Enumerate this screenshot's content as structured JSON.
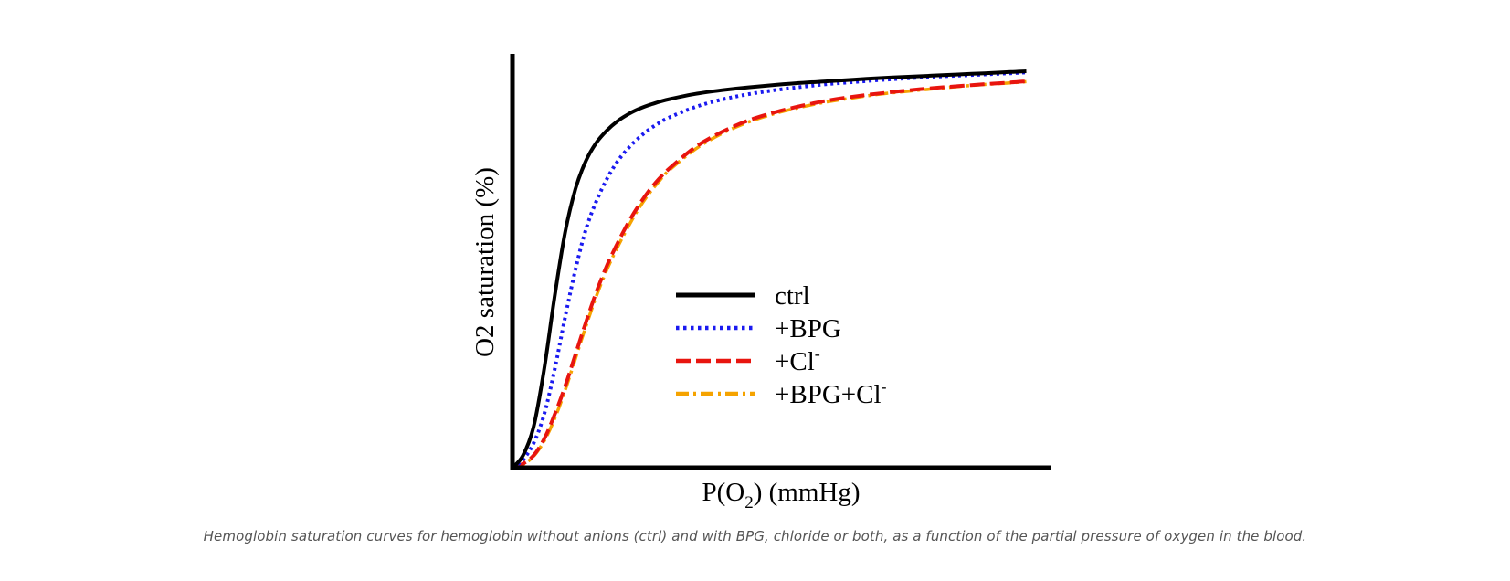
{
  "caption": "Hemoglobin saturation curves for hemoglobin without anions (ctrl) and with BPG, chloride or both, as a function of the partial pressure of oxygen in the blood.",
  "chart_data": {
    "type": "line",
    "title": "",
    "xlabel": {
      "base": "P(O",
      "sub": "2",
      "tail": ") (mmHg)"
    },
    "ylabel": "O2 saturation (%)",
    "xlim": [
      0,
      100
    ],
    "ylim": [
      0,
      100
    ],
    "grid": false,
    "legend_position": "center-right",
    "x": [
      0,
      2,
      4,
      6,
      8,
      10,
      12,
      14,
      16,
      18,
      20,
      22,
      24,
      26,
      28,
      30,
      35,
      40,
      45,
      50,
      55,
      60,
      65,
      70,
      75,
      80,
      85,
      90,
      95,
      98
    ],
    "series": [
      {
        "name": "ctrl",
        "color": "#000000",
        "dash": "solid",
        "values": [
          0,
          3,
          10,
          24,
          42,
          58,
          69,
          76,
          80.5,
          83.5,
          85.8,
          87.5,
          88.8,
          89.8,
          90.6,
          91.3,
          92.6,
          93.5,
          94.2,
          94.8,
          95.3,
          95.7,
          96.1,
          96.5,
          96.8,
          97.1,
          97.4,
          97.7,
          98,
          98.2
        ]
      },
      {
        "name": "+BPG",
        "color": "#1a1af0",
        "dash": "dotted",
        "values": [
          0,
          2,
          6,
          13,
          24,
          37,
          49,
          59,
          66,
          71.5,
          75.8,
          79,
          81.6,
          83.7,
          85.4,
          86.8,
          89.4,
          91.2,
          92.5,
          93.5,
          94.3,
          95,
          95.5,
          96,
          96.4,
          96.8,
          97.1,
          97.4,
          97.7,
          97.9
        ]
      },
      {
        "name": "+Cl",
        "superscript": "-",
        "color": "#e8150f",
        "dash": "dashed",
        "values": [
          0,
          1,
          3,
          7,
          13,
          20,
          28,
          36,
          43.5,
          50,
          55.5,
          60.5,
          64.8,
          68.5,
          71.6,
          74.2,
          79.5,
          83.2,
          86,
          88,
          89.6,
          90.9,
          91.9,
          92.7,
          93.4,
          94,
          94.5,
          95,
          95.4,
          95.7
        ]
      },
      {
        "name": "+BPG+Cl",
        "superscript": "-",
        "color": "#f5a300",
        "dash": "dashdot",
        "values": [
          0,
          0.8,
          2.8,
          6.5,
          12,
          19,
          27,
          35,
          42.5,
          49,
          54.5,
          59.5,
          64,
          67.8,
          71,
          73.8,
          79,
          82.8,
          85.6,
          87.7,
          89.3,
          90.6,
          91.6,
          92.5,
          93.2,
          93.8,
          94.4,
          94.9,
          95.3,
          95.6
        ]
      }
    ]
  }
}
